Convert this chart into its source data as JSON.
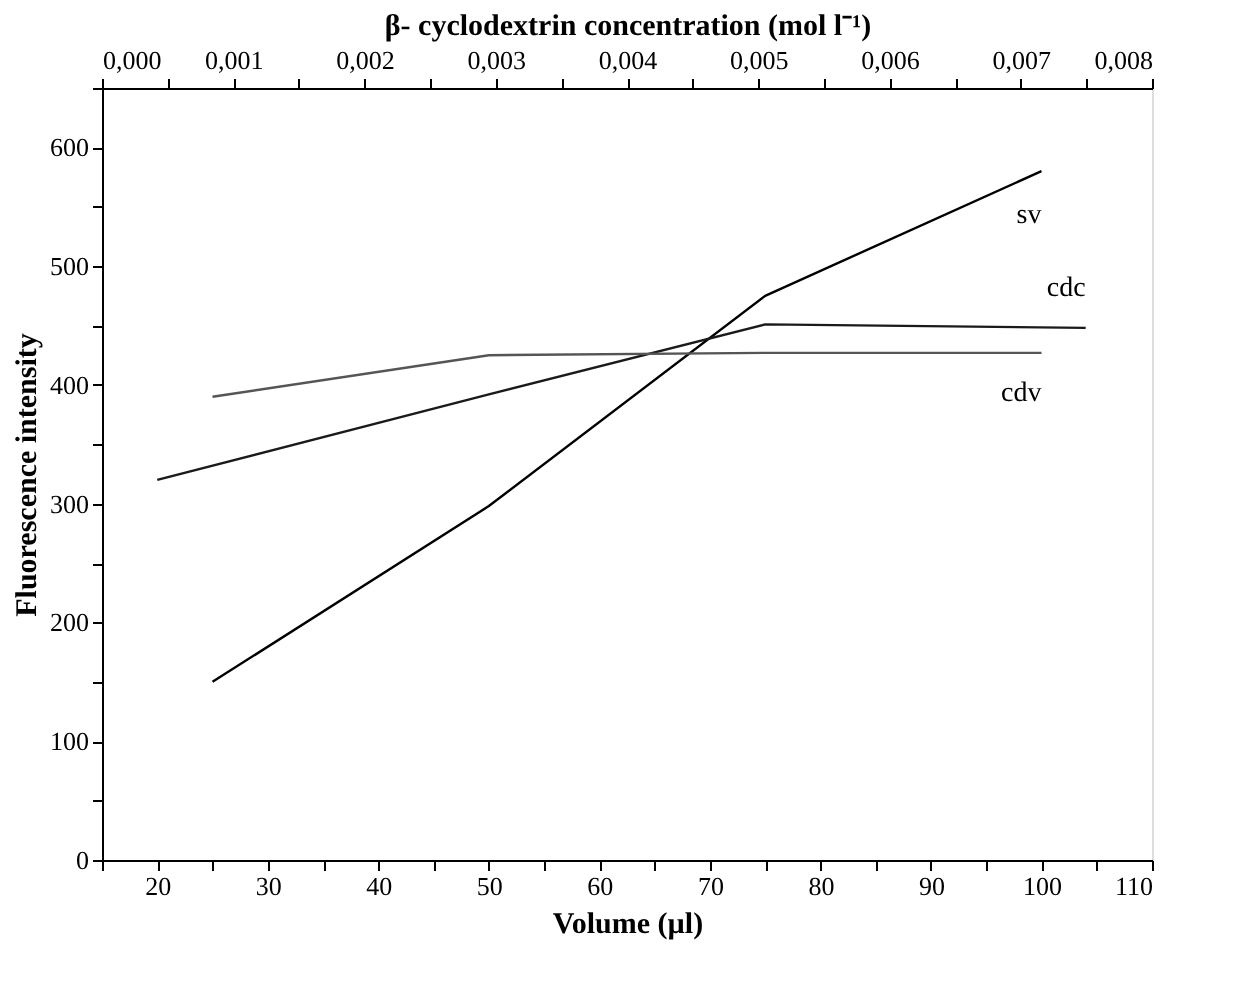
{
  "chart_data": {
    "type": "line",
    "xlabel": "Volume (µl)",
    "ylabel": "Fluorescence intensity",
    "x2label": "β- cyclodextrin concentration (mol l⁻¹)",
    "xlim": [
      15,
      110
    ],
    "xticks": [
      {
        "value": 15,
        "label": null
      },
      20,
      {
        "value": 25,
        "label": null
      },
      30,
      {
        "value": 35,
        "label": null
      },
      40,
      {
        "value": 45,
        "label": null
      },
      50,
      {
        "value": 55,
        "label": null
      },
      60,
      {
        "value": 65,
        "label": null
      },
      70,
      {
        "value": 75,
        "label": null
      },
      80,
      {
        "value": 85,
        "label": null
      },
      90,
      {
        "value": 95,
        "label": null
      },
      100,
      {
        "value": 105,
        "label": null
      },
      110
    ],
    "x2lim": [
      0,
      0.008
    ],
    "x2ticks": [
      {
        "value": 0,
        "label": "0,000"
      },
      {
        "value": 0.0005,
        "label": null
      },
      {
        "value": 0.001,
        "label": "0,001"
      },
      {
        "value": 0.0015,
        "label": null
      },
      {
        "value": 0.002,
        "label": "0,002"
      },
      {
        "value": 0.0025,
        "label": null
      },
      {
        "value": 0.003,
        "label": "0,003"
      },
      {
        "value": 0.0035,
        "label": null
      },
      {
        "value": 0.004,
        "label": "0,004"
      },
      {
        "value": 0.0045,
        "label": null
      },
      {
        "value": 0.005,
        "label": "0,005"
      },
      {
        "value": 0.0055,
        "label": null
      },
      {
        "value": 0.006,
        "label": "0,006"
      },
      {
        "value": 0.0065,
        "label": null
      },
      {
        "value": 0.007,
        "label": "0,007"
      },
      {
        "value": 0.0075,
        "label": null
      },
      {
        "value": 0.008,
        "label": "0,008"
      }
    ],
    "ylim": [
      0,
      650
    ],
    "yticks": [
      0,
      {
        "value": 50,
        "label": null
      },
      100,
      {
        "value": 150,
        "label": null
      },
      200,
      {
        "value": 250,
        "label": null
      },
      300,
      {
        "value": 350,
        "label": null
      },
      400,
      {
        "value": 450,
        "label": null
      },
      500,
      {
        "value": 550,
        "label": null
      },
      600,
      {
        "value": 650,
        "label": null
      }
    ],
    "series": [
      {
        "name": "sv",
        "color": "#000000",
        "x": [
          25,
          50,
          75,
          100
        ],
        "values": [
          150,
          298,
          475,
          580
        ]
      },
      {
        "name": "cdc",
        "color": "#1a1a1a",
        "x": [
          20,
          50,
          75,
          104
        ],
        "values": [
          320,
          392,
          451,
          448
        ]
      },
      {
        "name": "cdv",
        "color": "#555555",
        "x": [
          25,
          50,
          75,
          100
        ],
        "values": [
          390,
          425,
          427,
          427
        ]
      }
    ],
    "grid": false,
    "legend": false,
    "marker": "none",
    "line_style": "solid"
  }
}
